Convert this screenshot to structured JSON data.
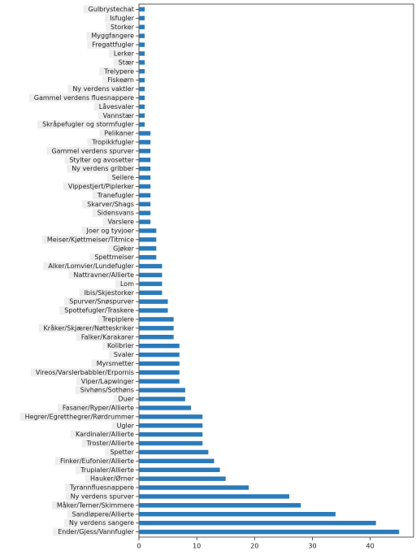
{
  "chart_data": {
    "type": "barh",
    "categories": [
      "Gulbrystechat",
      "Isfugler",
      "Storker",
      "Myggfangere",
      "Fregattfugler",
      "Lerker",
      "Stær",
      "Trelypere",
      "Fiskeørn",
      "Ny verdens vaktler",
      "Gammel verdens fluesnappere",
      "Låvesvaler",
      "Vannstær",
      "Skråpefugler og stormfugler",
      "Pelikaner",
      "Tropikkfugler",
      "Gammel verdens spurver",
      "Stylter og avosetter",
      "Ny verdens gribber",
      "Seilere",
      "Vippestjert/Piplerker",
      "Tranefugler",
      "Skarver/Shags",
      "Sidensvans",
      "Varslere",
      "Joer og tyvjoer",
      "Meiser/Kjøttmeiser/Titmice",
      "Gjøker",
      "Spettmeiser",
      "Alker/Lomvier/Lundefugler",
      "Nattravner/Allierte",
      "Lom",
      "Ibis/Skjestorker",
      "Spurver/Snøspurver",
      "Spottefugler/Traskere",
      "Trepiplere",
      "Kråker/Skjærer/Nøtteskriker",
      "Falker/Karakarer",
      "Kolibrier",
      "Svaler",
      "Myrsmetter",
      "Vireos/Varslerbabbler/Erpornis",
      "Viper/Lapwinger",
      "Sivhøns/Sothøns",
      "Duer",
      "Fasaner/Ryper/Allierte",
      "Hegrer/Egretthegrer/Rørdrummer",
      "Ugler",
      "Kardinaler/Allierte",
      "Troster/Allierte",
      "Spetter",
      "Finker/Eufonier/Allierte",
      "Trupialer/Allierte",
      "Hauker/Ørner",
      "Tyrannfluesnappere",
      "Ny verdens spurver",
      "Måker/Terner/Skimmere",
      "Sandløpere/Allierte",
      "Ny verdens sangere",
      "Ender/Gjess/Vannfugler"
    ],
    "values": [
      1,
      1,
      1,
      1,
      1,
      1,
      1,
      1,
      1,
      1,
      1,
      1,
      1,
      1,
      2,
      2,
      2,
      2,
      2,
      2,
      2,
      2,
      2,
      2,
      2,
      3,
      3,
      3,
      3,
      4,
      4,
      4,
      4,
      5,
      5,
      6,
      6,
      6,
      7,
      7,
      7,
      7,
      7,
      8,
      8,
      9,
      11,
      11,
      11,
      11,
      12,
      13,
      14,
      15,
      19,
      26,
      28,
      34,
      41,
      45
    ],
    "color": "#2b7bba",
    "xlim": [
      0,
      47.5
    ],
    "xticks": [
      0,
      10,
      20,
      30,
      40
    ]
  }
}
